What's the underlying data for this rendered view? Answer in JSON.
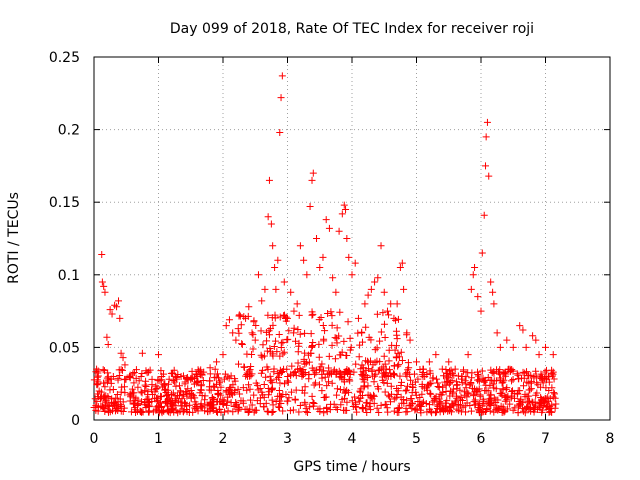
{
  "chart_data": {
    "type": "scatter",
    "title": "Day 099 of 2018, Rate Of TEC Index for receiver roji",
    "xlabel": "GPS time / hours",
    "ylabel": "ROTI / TECUs",
    "xlim": [
      0,
      8
    ],
    "ylim": [
      0,
      0.25
    ],
    "xticks": [
      0,
      1,
      2,
      3,
      4,
      5,
      6,
      7,
      8
    ],
    "yticks": [
      0,
      0.05,
      0.1,
      0.15,
      0.2,
      0.25
    ],
    "xtick_labels": [
      "0",
      "1",
      "2",
      "3",
      "4",
      "5",
      "6",
      "7",
      "8"
    ],
    "ytick_labels": [
      "0",
      "0.05",
      "0.1",
      "0.15",
      "0.2",
      "0.25"
    ],
    "grid": true,
    "marker": "+",
    "color": "#ff0000",
    "series": [
      {
        "name": "ROTI",
        "points": [
          [
            0.12,
            0.114
          ],
          [
            0.13,
            0.095
          ],
          [
            0.15,
            0.092
          ],
          [
            0.17,
            0.088
          ],
          [
            0.2,
            0.057
          ],
          [
            0.22,
            0.052
          ],
          [
            0.25,
            0.076
          ],
          [
            0.28,
            0.073
          ],
          [
            0.32,
            0.079
          ],
          [
            0.35,
            0.078
          ],
          [
            0.38,
            0.082
          ],
          [
            0.4,
            0.07
          ],
          [
            0.42,
            0.046
          ],
          [
            0.45,
            0.043
          ],
          [
            0.48,
            0.038
          ],
          [
            0.04,
            0.035
          ],
          [
            0.06,
            0.025
          ],
          [
            0.08,
            0.02
          ],
          [
            0.1,
            0.015
          ],
          [
            0.3,
            0.03
          ],
          [
            0.55,
            0.03
          ],
          [
            0.7,
            0.027
          ],
          [
            0.75,
            0.046
          ],
          [
            0.9,
            0.028
          ],
          [
            1.0,
            0.045
          ],
          [
            1.05,
            0.03
          ],
          [
            1.2,
            0.032
          ],
          [
            1.35,
            0.03
          ],
          [
            1.5,
            0.028
          ],
          [
            1.6,
            0.03
          ],
          [
            1.7,
            0.033
          ],
          [
            1.8,
            0.036
          ],
          [
            1.9,
            0.04
          ],
          [
            2.0,
            0.045
          ],
          [
            2.05,
            0.065
          ],
          [
            2.1,
            0.069
          ],
          [
            2.15,
            0.06
          ],
          [
            2.2,
            0.055
          ],
          [
            2.3,
            0.052
          ],
          [
            2.35,
            0.07
          ],
          [
            2.4,
            0.078
          ],
          [
            2.45,
            0.06
          ],
          [
            2.5,
            0.055
          ],
          [
            2.55,
            0.1
          ],
          [
            2.6,
            0.082
          ],
          [
            2.65,
            0.09
          ],
          [
            2.7,
            0.14
          ],
          [
            2.72,
            0.165
          ],
          [
            2.75,
            0.135
          ],
          [
            2.77,
            0.12
          ],
          [
            2.8,
            0.105
          ],
          [
            2.82,
            0.09
          ],
          [
            2.85,
            0.11
          ],
          [
            2.88,
            0.198
          ],
          [
            2.9,
            0.222
          ],
          [
            2.92,
            0.237
          ],
          [
            2.95,
            0.095
          ],
          [
            3.0,
            0.07
          ],
          [
            3.05,
            0.088
          ],
          [
            3.1,
            0.075
          ],
          [
            3.15,
            0.08
          ],
          [
            3.2,
            0.12
          ],
          [
            3.25,
            0.11
          ],
          [
            3.3,
            0.1
          ],
          [
            3.35,
            0.147
          ],
          [
            3.38,
            0.165
          ],
          [
            3.4,
            0.17
          ],
          [
            3.45,
            0.125
          ],
          [
            3.5,
            0.105
          ],
          [
            3.55,
            0.112
          ],
          [
            3.6,
            0.138
          ],
          [
            3.65,
            0.132
          ],
          [
            3.7,
            0.098
          ],
          [
            3.75,
            0.088
          ],
          [
            3.8,
            0.13
          ],
          [
            3.85,
            0.142
          ],
          [
            3.88,
            0.148
          ],
          [
            3.9,
            0.145
          ],
          [
            3.92,
            0.125
          ],
          [
            3.95,
            0.112
          ],
          [
            4.0,
            0.1
          ],
          [
            4.05,
            0.108
          ],
          [
            4.1,
            0.07
          ],
          [
            4.15,
            0.06
          ],
          [
            4.2,
            0.08
          ],
          [
            4.25,
            0.086
          ],
          [
            4.3,
            0.09
          ],
          [
            4.35,
            0.095
          ],
          [
            4.4,
            0.098
          ],
          [
            4.45,
            0.12
          ],
          [
            4.5,
            0.088
          ],
          [
            4.55,
            0.075
          ],
          [
            4.6,
            0.08
          ],
          [
            4.65,
            0.07
          ],
          [
            4.7,
            0.08
          ],
          [
            4.75,
            0.105
          ],
          [
            4.78,
            0.108
          ],
          [
            4.8,
            0.09
          ],
          [
            4.85,
            0.06
          ],
          [
            4.9,
            0.055
          ],
          [
            5.0,
            0.04
          ],
          [
            5.1,
            0.035
          ],
          [
            5.2,
            0.04
          ],
          [
            5.3,
            0.045
          ],
          [
            5.4,
            0.035
          ],
          [
            5.5,
            0.04
          ],
          [
            5.6,
            0.035
          ],
          [
            5.7,
            0.03
          ],
          [
            5.8,
            0.045
          ],
          [
            5.85,
            0.09
          ],
          [
            5.88,
            0.1
          ],
          [
            5.9,
            0.105
          ],
          [
            5.95,
            0.085
          ],
          [
            6.0,
            0.075
          ],
          [
            6.02,
            0.115
          ],
          [
            6.05,
            0.141
          ],
          [
            6.07,
            0.175
          ],
          [
            6.08,
            0.195
          ],
          [
            6.1,
            0.205
          ],
          [
            6.12,
            0.168
          ],
          [
            6.15,
            0.095
          ],
          [
            6.18,
            0.088
          ],
          [
            6.2,
            0.08
          ],
          [
            6.25,
            0.06
          ],
          [
            6.3,
            0.05
          ],
          [
            6.4,
            0.055
          ],
          [
            6.5,
            0.05
          ],
          [
            6.6,
            0.065
          ],
          [
            6.65,
            0.062
          ],
          [
            6.7,
            0.05
          ],
          [
            6.8,
            0.058
          ],
          [
            6.85,
            0.055
          ],
          [
            6.9,
            0.045
          ],
          [
            7.0,
            0.05
          ],
          [
            7.05,
            0.03
          ],
          [
            7.12,
            0.045
          ],
          [
            7.14,
            0.018
          ],
          [
            7.15,
            0.015
          ],
          [
            7.16,
            0.011
          ]
        ]
      }
    ],
    "background_band": {
      "note": "dense cluster of measurements between 0.005 and 0.035 ROTI across 0-7.15 h",
      "x_range": [
        0.0,
        7.15
      ],
      "y_range": [
        0.005,
        0.035
      ],
      "count": 1400,
      "gaps": [
        [
          0.5,
          0.55
        ]
      ]
    }
  }
}
